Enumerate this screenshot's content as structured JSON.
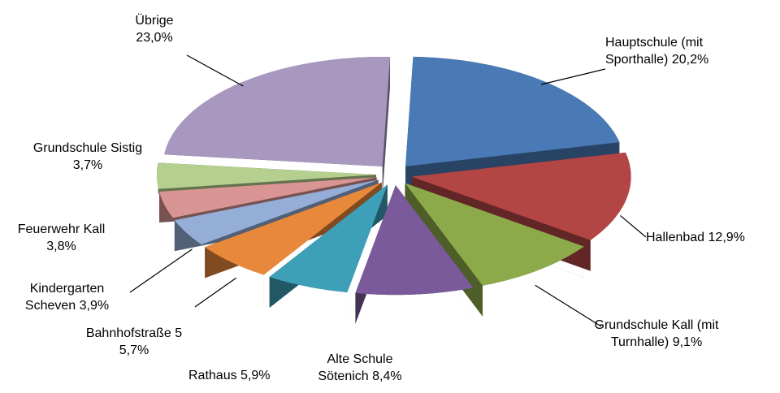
{
  "chart_data": {
    "type": "pie",
    "categories": [
      "Hauptschule (mit Sporthalle)",
      "Hallenbad",
      "Grundschule Kall (mit Turnhalle)",
      "Alte Schule Sötenich",
      "Rathaus",
      "Bahnhofstraße 5",
      "Kindergarten Scheven",
      "Feuerwehr Kall",
      "Grundschule Sistig",
      "Übrige"
    ],
    "values": [
      20.2,
      12.9,
      9.1,
      8.4,
      5.9,
      5.7,
      3.9,
      3.8,
      3.7,
      23.0
    ],
    "value_labels": [
      "20,2%",
      "12,9%",
      "9,1%",
      "8,4%",
      "5,9%",
      "5,7%",
      "3,9%",
      "3,8%",
      "3,7%",
      "23,0%"
    ],
    "colors": [
      "#4a7ab5",
      "#b34545",
      "#8caa4a",
      "#7a5a9a",
      "#3ea0b8",
      "#e8883a",
      "#95aed8",
      "#d99594",
      "#b5cf8e",
      "#a898c0"
    ]
  }
}
